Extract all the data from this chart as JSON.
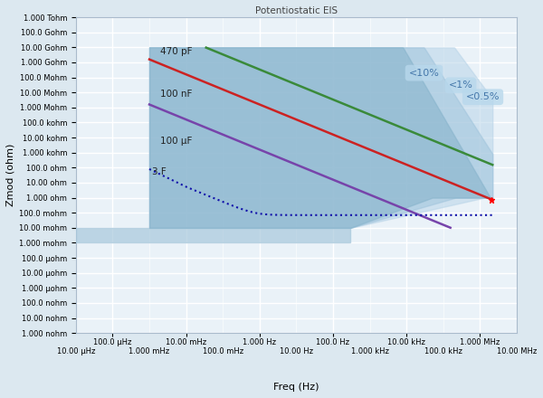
{
  "title": "Potentiostatic EIS",
  "xlabel": "Freq (Hz)",
  "ylabel": "Zmod (ohm)",
  "freq_min": 1e-05,
  "freq_max": 10000000.0,
  "zmod_min": 1e-09,
  "zmod_max": 1000000000000.0,
  "bg_color": "#dce8f0",
  "plot_bg_color": "#eaf2f8",
  "grid_color": "#ffffff",
  "region_outer_color": "#b8d4e8",
  "region_mid_color": "#a0c4dc",
  "region_inner_color": "#88b4cc",
  "region_floor_color": "#a8c8dc",
  "label_470pF": "470 pF",
  "label_100nF": "100 nF",
  "label_100uF": "100 μF",
  "label_3F": "3 F",
  "color_470pF": "#3a8a3a",
  "color_100nF": "#cc2222",
  "color_100uF": "#7744aa",
  "color_3F": "#1111aa",
  "ann_10pct": "<10%",
  "ann_1pct": "<1%",
  "ann_05pct": "<0.5%",
  "ann_bg": "#b8d8ec",
  "ann_text": "#4477aa"
}
